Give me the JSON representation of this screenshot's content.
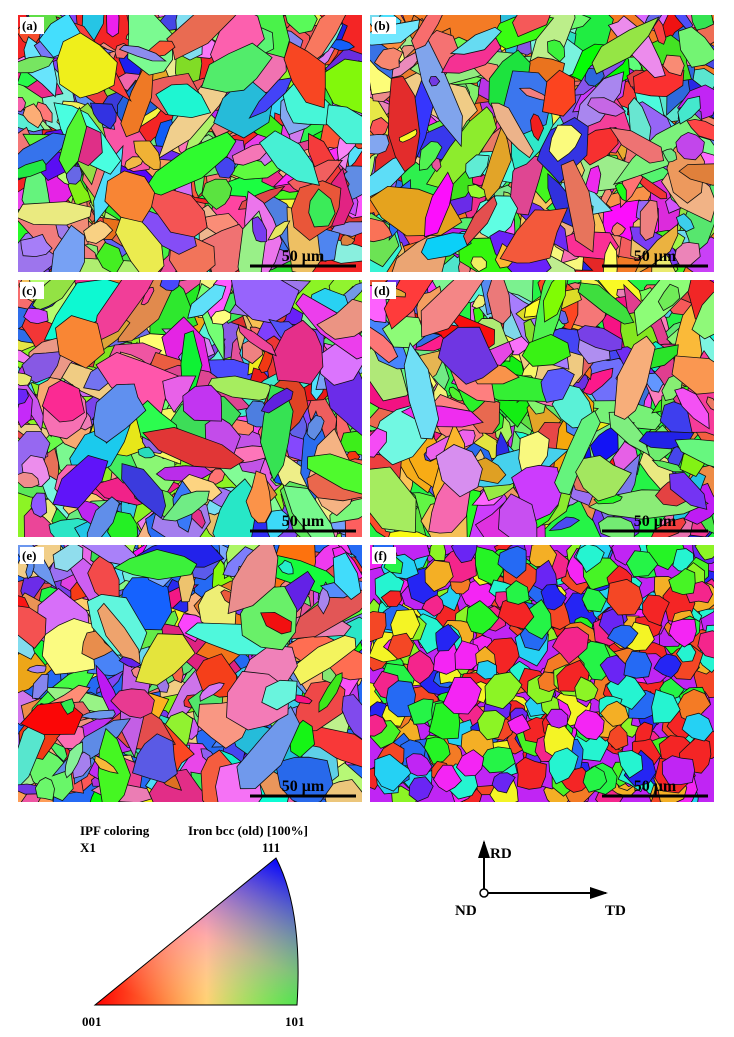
{
  "panels": [
    {
      "label": "(a)",
      "scale_bar": "50 μm"
    },
    {
      "label": "(b)",
      "scale_bar": "50 μm"
    },
    {
      "label": "(c)",
      "scale_bar": "50 μm"
    },
    {
      "label": "(d)",
      "scale_bar": "50 μm"
    },
    {
      "label": "(e)",
      "scale_bar": "50 μm"
    },
    {
      "label": "(f)",
      "scale_bar": "50 μm"
    }
  ],
  "legend": {
    "title": "IPF coloring",
    "direction": "X1",
    "phase": "Iron bcc (old) [100%]",
    "vertex_top": "111",
    "vertex_left": "001",
    "vertex_right": "101"
  },
  "axes": {
    "rd": "RD",
    "nd": "ND",
    "td": "TD"
  }
}
